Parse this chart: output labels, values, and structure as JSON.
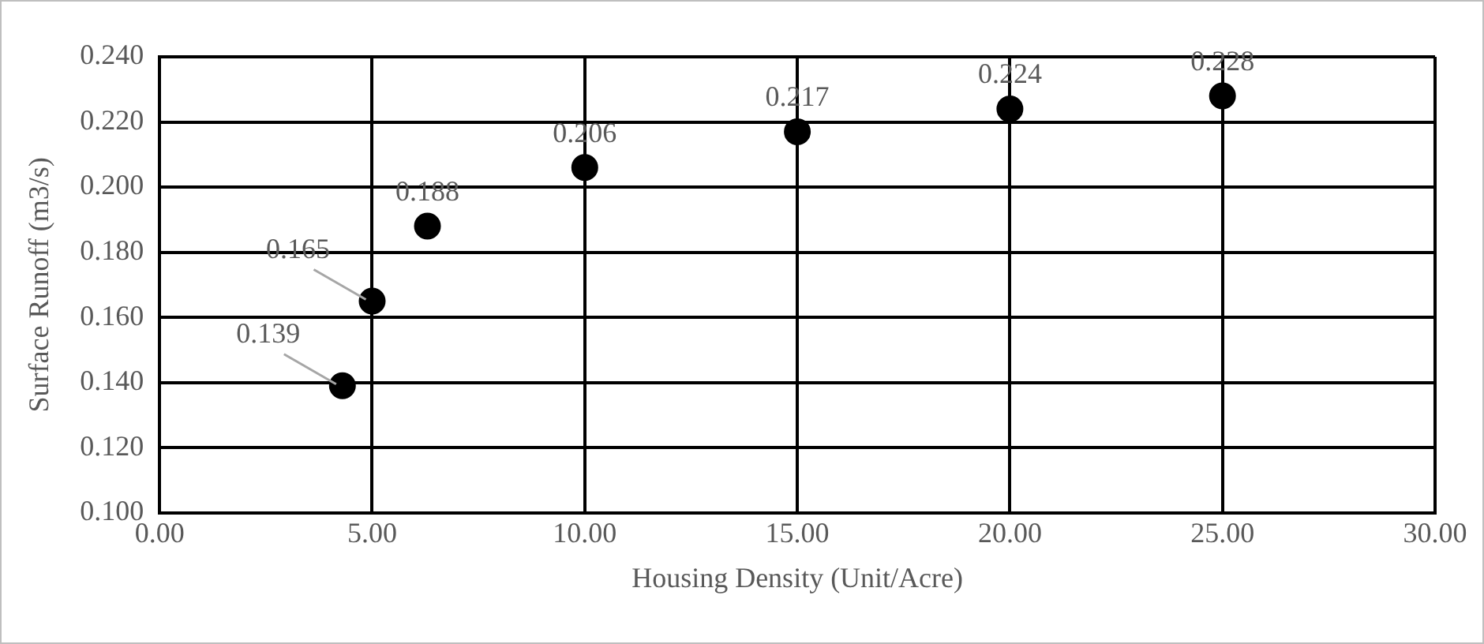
{
  "chart_data": {
    "type": "scatter",
    "xlabel": "Housing Density (Unit/Acre)",
    "ylabel": "Surface Runoff (m3/s)",
    "x": [
      4.3,
      5,
      6.3,
      10,
      15,
      20,
      25
    ],
    "series": [
      {
        "color": "#000000",
        "values": [
          0.139,
          0.165,
          0.188,
          0.206,
          0.217,
          0.224,
          0.228
        ]
      }
    ],
    "value_labels": [
      "0.139",
      "0.165",
      "0.188",
      "0.206",
      "0.217",
      "0.224",
      "0.228"
    ],
    "xlim": [
      0,
      30
    ],
    "xticks": [
      {
        "value": 0,
        "label": "0.00"
      },
      {
        "value": 5,
        "label": "5.00"
      },
      {
        "value": 10,
        "label": "10.00"
      },
      {
        "value": 15,
        "label": "15.00"
      },
      {
        "value": 20,
        "label": "20.00"
      },
      {
        "value": 25,
        "label": "25.00"
      },
      {
        "value": 30,
        "label": "30.00"
      }
    ],
    "ylim": [
      0.1,
      0.24
    ],
    "yticks": [
      {
        "value": 0.1,
        "label": "0.100"
      },
      {
        "value": 0.12,
        "label": "0.120"
      },
      {
        "value": 0.14,
        "label": "0.140"
      },
      {
        "value": 0.16,
        "label": "0.160"
      },
      {
        "value": 0.18,
        "label": "0.180"
      },
      {
        "value": 0.2,
        "label": "0.200"
      },
      {
        "value": 0.22,
        "label": "0.220"
      },
      {
        "value": 0.24,
        "label": "0.240"
      }
    ],
    "grid": true,
    "legend": false,
    "marker": "circle"
  }
}
